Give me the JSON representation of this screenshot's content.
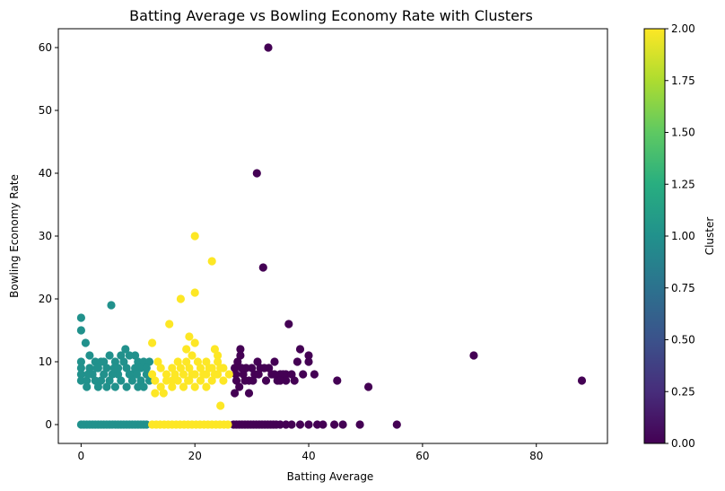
{
  "chart_data": {
    "type": "scatter",
    "title": "Batting Average vs Bowling Economy Rate with Clusters",
    "xlabel": "Batting Average",
    "ylabel": "Bowling Economy Rate",
    "xlim": [
      -4,
      92.5
    ],
    "ylim": [
      -3,
      63
    ],
    "xticks": [
      0,
      20,
      40,
      60,
      80
    ],
    "yticks": [
      0,
      10,
      20,
      30,
      40,
      50,
      60
    ],
    "grid": false,
    "colormap": "viridis",
    "colorbar": {
      "label": "Cluster",
      "range": [
        0,
        2
      ],
      "ticks": [
        "0.00",
        "0.25",
        "0.50",
        "0.75",
        "1.00",
        "1.25",
        "1.50",
        "1.75",
        "2.00"
      ]
    },
    "colors": {
      "0": "#440154",
      "1": "#21918c",
      "2": "#fde725"
    },
    "series": [
      {
        "cluster": 0,
        "points": [
          [
            32.9,
            60
          ],
          [
            30.9,
            40
          ],
          [
            32.0,
            25
          ],
          [
            36.5,
            16
          ],
          [
            69.0,
            11
          ],
          [
            88.0,
            7
          ],
          [
            50.5,
            6
          ],
          [
            45.0,
            7
          ],
          [
            28.0,
            12
          ],
          [
            28.0,
            11
          ],
          [
            27.5,
            10
          ],
          [
            30.0,
            9
          ],
          [
            31.0,
            10
          ],
          [
            33.0,
            9
          ],
          [
            34.0,
            10
          ],
          [
            35.0,
            8
          ],
          [
            36.0,
            8
          ],
          [
            37.0,
            8
          ],
          [
            38.0,
            10
          ],
          [
            38.5,
            12
          ],
          [
            39.0,
            8
          ],
          [
            40.0,
            11
          ],
          [
            40.0,
            10
          ],
          [
            41.0,
            8
          ],
          [
            27.0,
            9
          ],
          [
            27.3,
            7
          ],
          [
            28.5,
            8
          ],
          [
            29.0,
            9
          ],
          [
            29.5,
            7
          ],
          [
            30.5,
            8
          ],
          [
            31.5,
            9
          ],
          [
            32.5,
            7
          ],
          [
            33.5,
            8
          ],
          [
            34.5,
            7
          ],
          [
            35.5,
            8
          ],
          [
            27.0,
            5
          ],
          [
            29.5,
            5
          ],
          [
            27.8,
            6
          ],
          [
            36.0,
            7
          ],
          [
            37.5,
            7
          ],
          [
            27.2,
            8
          ],
          [
            28.2,
            9
          ],
          [
            28.8,
            7
          ],
          [
            30.2,
            7
          ],
          [
            31.2,
            8
          ],
          [
            32.2,
            9
          ],
          [
            34.0,
            8
          ],
          [
            35.0,
            7
          ],
          [
            26.8,
            0
          ],
          [
            27.3,
            0
          ],
          [
            27.8,
            0
          ],
          [
            28.3,
            0
          ],
          [
            28.8,
            0
          ],
          [
            29.3,
            0
          ],
          [
            29.8,
            0
          ],
          [
            30.3,
            0
          ],
          [
            30.8,
            0
          ],
          [
            31.3,
            0
          ],
          [
            31.8,
            0
          ],
          [
            32.3,
            0
          ],
          [
            32.8,
            0
          ],
          [
            33.3,
            0
          ],
          [
            33.8,
            0
          ],
          [
            34.3,
            0
          ],
          [
            35.0,
            0
          ],
          [
            36.0,
            0
          ],
          [
            37.0,
            0
          ],
          [
            38.5,
            0
          ],
          [
            40.0,
            0
          ],
          [
            41.5,
            0
          ],
          [
            42.5,
            0
          ],
          [
            44.5,
            0
          ],
          [
            46.0,
            0
          ],
          [
            49.0,
            0
          ],
          [
            55.5,
            0
          ]
        ]
      },
      {
        "cluster": 1,
        "points": [
          [
            0.0,
            17
          ],
          [
            0.0,
            15
          ],
          [
            5.3,
            19
          ],
          [
            0.8,
            13
          ],
          [
            0.0,
            10
          ],
          [
            0.0,
            9
          ],
          [
            0.0,
            8
          ],
          [
            0.0,
            7
          ],
          [
            1.5,
            11
          ],
          [
            7.8,
            12
          ],
          [
            5.0,
            11
          ],
          [
            9.5,
            11
          ],
          [
            10.0,
            10
          ],
          [
            3.0,
            9
          ],
          [
            3.5,
            10
          ],
          [
            4.5,
            9
          ],
          [
            6.0,
            10
          ],
          [
            6.5,
            8
          ],
          [
            7.5,
            10
          ],
          [
            8.0,
            9
          ],
          [
            8.5,
            11
          ],
          [
            9.0,
            8
          ],
          [
            10.5,
            9
          ],
          [
            11.0,
            10
          ],
          [
            11.5,
            8
          ],
          [
            12.0,
            10
          ],
          [
            1.0,
            7
          ],
          [
            1.0,
            6
          ],
          [
            2.0,
            8
          ],
          [
            2.5,
            7
          ],
          [
            3.0,
            6
          ],
          [
            3.5,
            7
          ],
          [
            4.0,
            8
          ],
          [
            4.5,
            6
          ],
          [
            5.0,
            7
          ],
          [
            5.5,
            8
          ],
          [
            6.0,
            6
          ],
          [
            7.0,
            7
          ],
          [
            8.0,
            6
          ],
          [
            9.0,
            7
          ],
          [
            10.0,
            6
          ],
          [
            10.5,
            7
          ],
          [
            11.0,
            6
          ],
          [
            12.0,
            7
          ],
          [
            1.5,
            9
          ],
          [
            2.5,
            10
          ],
          [
            4.0,
            10
          ],
          [
            6.5,
            9
          ],
          [
            7.0,
            11
          ],
          [
            8.5,
            8
          ],
          [
            9.5,
            9
          ],
          [
            11.5,
            9
          ],
          [
            1.2,
            8
          ],
          [
            2.8,
            9
          ],
          [
            5.8,
            9
          ],
          [
            9.8,
            8
          ],
          [
            0.0,
            0
          ],
          [
            1.0,
            0
          ],
          [
            2.0,
            0
          ],
          [
            3.0,
            0
          ],
          [
            4.0,
            0
          ],
          [
            5.0,
            0
          ],
          [
            6.0,
            0
          ],
          [
            7.0,
            0
          ],
          [
            8.0,
            0
          ],
          [
            9.0,
            0
          ],
          [
            10.0,
            0
          ],
          [
            11.0,
            0
          ],
          [
            0.5,
            0
          ],
          [
            1.5,
            0
          ],
          [
            2.5,
            0
          ],
          [
            3.5,
            0
          ],
          [
            4.5,
            0
          ],
          [
            5.5,
            0
          ],
          [
            6.5,
            0
          ],
          [
            7.5,
            0
          ],
          [
            8.5,
            0
          ],
          [
            9.5,
            0
          ],
          [
            10.5,
            0
          ],
          [
            11.5,
            0
          ]
        ]
      },
      {
        "cluster": 2,
        "points": [
          [
            20.0,
            30
          ],
          [
            23.0,
            26
          ],
          [
            20.0,
            21
          ],
          [
            17.5,
            20
          ],
          [
            15.5,
            16
          ],
          [
            19.0,
            14
          ],
          [
            12.5,
            13
          ],
          [
            20.0,
            13
          ],
          [
            18.5,
            12
          ],
          [
            23.5,
            12
          ],
          [
            19.5,
            11
          ],
          [
            24.0,
            11
          ],
          [
            24.5,
            3
          ],
          [
            13.5,
            10
          ],
          [
            14.0,
            9
          ],
          [
            15.0,
            8
          ],
          [
            16.0,
            9
          ],
          [
            17.0,
            10
          ],
          [
            18.0,
            8
          ],
          [
            19.0,
            9
          ],
          [
            20.5,
            10
          ],
          [
            21.0,
            9
          ],
          [
            22.0,
            8
          ],
          [
            23.0,
            9
          ],
          [
            24.0,
            10
          ],
          [
            25.0,
            9
          ],
          [
            26.0,
            8
          ],
          [
            12.5,
            8
          ],
          [
            13.0,
            7
          ],
          [
            14.0,
            6
          ],
          [
            15.0,
            7
          ],
          [
            16.0,
            6
          ],
          [
            17.0,
            7
          ],
          [
            18.0,
            6
          ],
          [
            19.0,
            7
          ],
          [
            20.0,
            6
          ],
          [
            21.0,
            7
          ],
          [
            22.0,
            6
          ],
          [
            23.0,
            7
          ],
          [
            24.0,
            8
          ],
          [
            25.0,
            7
          ],
          [
            13.0,
            5
          ],
          [
            14.5,
            5
          ],
          [
            16.5,
            8
          ],
          [
            17.5,
            9
          ],
          [
            18.5,
            10
          ],
          [
            19.5,
            8
          ],
          [
            21.5,
            8
          ],
          [
            22.5,
            9
          ],
          [
            23.5,
            8
          ],
          [
            24.5,
            9
          ],
          [
            16.0,
            7
          ],
          [
            20.0,
            8
          ],
          [
            22.0,
            10
          ],
          [
            18.8,
            7
          ],
          [
            12.5,
            0
          ],
          [
            13.2,
            0
          ],
          [
            13.9,
            0
          ],
          [
            14.6,
            0
          ],
          [
            15.3,
            0
          ],
          [
            16.0,
            0
          ],
          [
            16.7,
            0
          ],
          [
            17.4,
            0
          ],
          [
            18.1,
            0
          ],
          [
            18.8,
            0
          ],
          [
            19.5,
            0
          ],
          [
            20.2,
            0
          ],
          [
            20.9,
            0
          ],
          [
            21.6,
            0
          ],
          [
            22.3,
            0
          ],
          [
            23.0,
            0
          ],
          [
            23.7,
            0
          ],
          [
            24.4,
            0
          ],
          [
            25.1,
            0
          ],
          [
            25.8,
            0
          ]
        ]
      }
    ]
  }
}
